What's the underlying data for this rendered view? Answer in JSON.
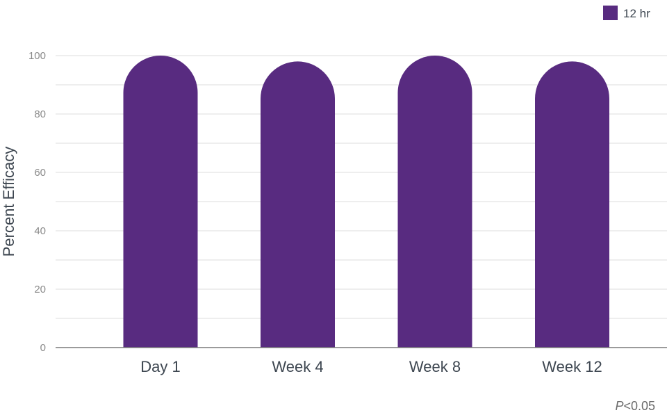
{
  "chart_data": {
    "type": "bar",
    "categories": [
      "Day 1",
      "Week 4",
      "Week 8",
      "Week 12"
    ],
    "series": [
      {
        "name": "12 hr",
        "values": [
          100,
          98,
          100,
          98
        ]
      }
    ],
    "ylabel": "Percent Efficacy",
    "xlabel": "",
    "ylim": [
      0,
      100
    ],
    "yticks": [
      0,
      20,
      40,
      60,
      80,
      100
    ],
    "grid": true,
    "legend_position": "top-right",
    "bar_style": "rounded-top",
    "note": {
      "italic": "P",
      "rest": "<0.05"
    },
    "colors": {
      "bar": "#582b80",
      "grid": "#dddddd",
      "axis": "#7a7a7a"
    }
  }
}
